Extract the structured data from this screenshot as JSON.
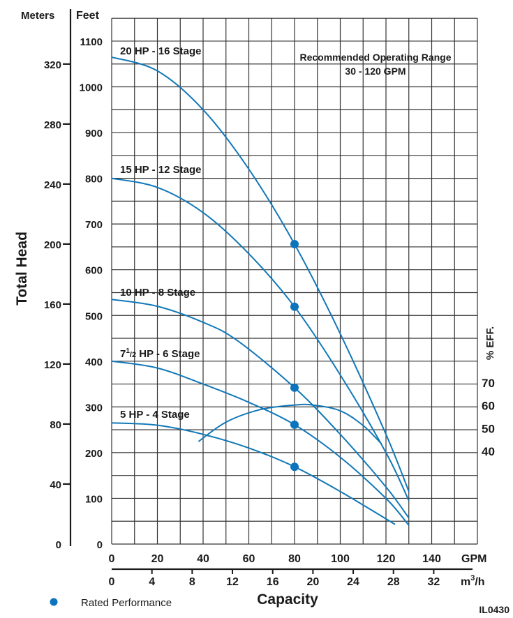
{
  "chart_data": {
    "type": "line",
    "title": "",
    "ylabel": "Total Head",
    "xlabel": "Capacity",
    "y_left_units": "Meters",
    "y_right_units": "Feet",
    "x_units_primary": "GPM",
    "x_units_secondary": "m3/h",
    "x_units_secondary_base": "m",
    "x_units_secondary_sup": "3",
    "x_units_secondary_tail": "/h",
    "eff_label": "% EFF.",
    "xlim": [
      0,
      160
    ],
    "ylim_feet": [
      0,
      1150
    ],
    "grid": true,
    "x_ticks_gpm": [
      "0",
      "20",
      "40",
      "60",
      "80",
      "100",
      "120",
      "140"
    ],
    "x_ticks_gpm_values": [
      0,
      20,
      40,
      60,
      80,
      100,
      120,
      140
    ],
    "x_ticks_m3h": [
      "0",
      "4",
      "8",
      "12",
      "16",
      "20",
      "24",
      "28",
      "32"
    ],
    "x_ticks_m3h_values": [
      0,
      4,
      8,
      12,
      16,
      20,
      24,
      28,
      32
    ],
    "y_ticks_feet": [
      "0",
      "100",
      "200",
      "300",
      "400",
      "500",
      "600",
      "700",
      "800",
      "900",
      "1000",
      "1100"
    ],
    "y_ticks_feet_values": [
      0,
      100,
      200,
      300,
      400,
      500,
      600,
      700,
      800,
      900,
      1000,
      1100
    ],
    "y_ticks_meters": [
      "0",
      "40",
      "80",
      "120",
      "160",
      "200",
      "240",
      "280",
      "320"
    ],
    "y_ticks_meters_values": [
      0,
      40,
      80,
      120,
      160,
      200,
      240,
      280,
      320
    ],
    "eff_ticks": [
      "70",
      "60",
      "50",
      "40"
    ],
    "eff_ticks_values": [
      70,
      60,
      50,
      40
    ],
    "series": [
      {
        "name": "20 HP - 16 Stage",
        "label_main": "20 HP - 16 Stage",
        "x": [
          0,
          20,
          40,
          60,
          80,
          100,
          120,
          130
        ],
        "y": [
          1065,
          1035,
          950,
          820,
          656,
          460,
          240,
          115
        ]
      },
      {
        "name": "15 HP - 12 Stage",
        "label_main": "15 HP - 12 Stage",
        "x": [
          0,
          20,
          40,
          60,
          80,
          100,
          120,
          130
        ],
        "y": [
          800,
          780,
          725,
          635,
          519,
          370,
          200,
          95
        ]
      },
      {
        "name": "10 HP - 8 Stage",
        "label_main": "10 HP - 8 Stage",
        "x": [
          0,
          20,
          40,
          55,
          80,
          100,
          120,
          130
        ],
        "y": [
          535,
          520,
          485,
          445,
          342,
          240,
          125,
          57
        ]
      },
      {
        "name": "7 1/2 HP - 6 Stage",
        "label_pre": "7",
        "label_sup": "1",
        "label_mid": "/2",
        "label_post": " HP - 6 Stage",
        "x": [
          0,
          20,
          40,
          60,
          80,
          100,
          120,
          130
        ],
        "y": [
          400,
          385,
          350,
          310,
          261,
          190,
          100,
          41
        ]
      },
      {
        "name": "5 HP - 4 Stage",
        "label_main": "5 HP - 4 Stage",
        "x": [
          0,
          20,
          40,
          60,
          80,
          100,
          124
        ],
        "y": [
          265,
          260,
          240,
          210,
          169,
          115,
          43
        ]
      }
    ],
    "rated_points": [
      {
        "series": "20 HP - 16 Stage",
        "gpm": 80,
        "feet": 656
      },
      {
        "series": "15 HP - 12 Stage",
        "gpm": 80,
        "feet": 519
      },
      {
        "series": "10 HP - 8 Stage",
        "gpm": 80,
        "feet": 342
      },
      {
        "series": "7 1/2 HP - 6 Stage",
        "gpm": 80,
        "feet": 261
      },
      {
        "series": "5 HP - 4 Stage",
        "gpm": 80,
        "feet": 169
      }
    ],
    "efficiency": {
      "name": "% EFF.",
      "x": [
        38,
        50,
        65,
        80,
        88,
        100,
        110,
        118
      ],
      "y": [
        44,
        52.5,
        58,
        60,
        60,
        57.5,
        51,
        43
      ]
    },
    "annotations": {
      "range_title": "Recommended Operating Range",
      "range_value": "30 - 120 GPM"
    },
    "legend": {
      "position": "bottom-left",
      "label": "Rated Performance"
    },
    "figure_code": "IL0430",
    "colors": {
      "curve": "#1278b8",
      "dot": "#0c73bd",
      "grid": "#333333",
      "text": "#1a1a1a"
    }
  }
}
